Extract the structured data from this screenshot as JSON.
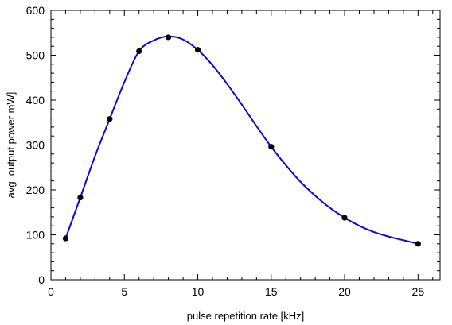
{
  "chart_data": {
    "type": "line",
    "title": "",
    "xlabel": "pulse repetition rate [kHz]",
    "ylabel": "avg. output power mW]",
    "xlim": [
      0,
      26.5
    ],
    "ylim": [
      0,
      600
    ],
    "xticks": [
      0,
      5,
      10,
      15,
      20,
      25
    ],
    "yticks": [
      0,
      100,
      200,
      300,
      400,
      500,
      600
    ],
    "xtick_labels": [
      "0",
      "5",
      "10",
      "15",
      "20",
      "25"
    ],
    "ytick_labels": [
      "0",
      "100",
      "200",
      "300",
      "400",
      "500",
      "600"
    ],
    "x_minor_step": 1,
    "y_minor_step": 20,
    "grid": false,
    "series": [
      {
        "style": "markers",
        "color": "#000000",
        "x": [
          1,
          2,
          4,
          6,
          8,
          10,
          15,
          20,
          25
        ],
        "y": [
          92,
          183,
          358,
          509,
          540,
          512,
          296,
          138,
          80
        ]
      },
      {
        "style": "smooth-line",
        "color": "#0a0ad8",
        "x": [
          1,
          2,
          3,
          4,
          5,
          6,
          7,
          8,
          9,
          10,
          11,
          12,
          13,
          14,
          15,
          16,
          17,
          18,
          19,
          20,
          21,
          22,
          23,
          24,
          25
        ],
        "y": [
          92,
          183,
          275,
          358,
          440,
          509,
          533,
          542,
          535,
          512,
          478,
          436,
          390,
          342,
          296,
          255,
          218,
          187,
          160,
          138,
          120,
          106,
          96,
          88,
          80
        ]
      }
    ]
  }
}
